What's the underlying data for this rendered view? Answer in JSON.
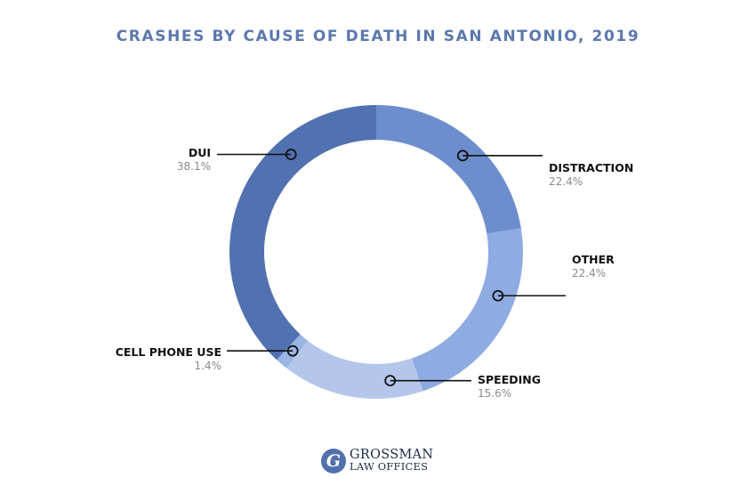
{
  "chart_data": {
    "type": "pie",
    "title": "CRASHES BY CAUSE OF DEATH IN SAN ANTONIO, 2019",
    "slices": [
      {
        "label": "DISTRACTION",
        "value_label": "22.4%",
        "value": 22.4,
        "color": "#6d8ecd"
      },
      {
        "label": "OTHER",
        "value_label": "22.4%",
        "value": 22.4,
        "color": "#8eabe2"
      },
      {
        "label": "SPEEDING",
        "value_label": "15.6%",
        "value": 15.6,
        "color": "#b4c6ea"
      },
      {
        "label": "CELL PHONE USE",
        "value_label": "1.4%",
        "value": 1.4,
        "color": "#9ab4e6"
      },
      {
        "label": "DUI",
        "value_label": "38.1%",
        "value": 38.1,
        "color": "#5271b0"
      }
    ]
  },
  "logo": {
    "mark": "G",
    "line1": "GROSSMAN",
    "line2": "LAW OFFICES"
  }
}
